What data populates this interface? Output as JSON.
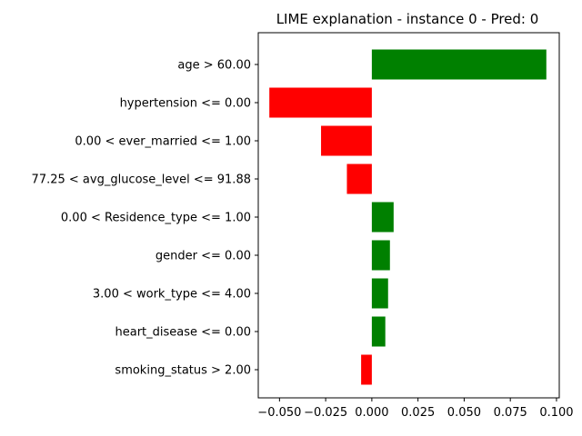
{
  "chart_data": {
    "type": "bar",
    "orientation": "horizontal",
    "title": "LIME explanation - instance 0 - Pred: 0",
    "xlabel": "",
    "ylabel": "",
    "categories": [
      "age > 60.00",
      "hypertension <= 0.00",
      "0.00 < ever_married <= 1.00",
      "77.25 < avg_glucose_level <= 91.88",
      "0.00 < Residence_type <= 1.00",
      "gender <= 0.00",
      "3.00 < work_type <= 4.00",
      "heart_disease <= 0.00",
      "smoking_status > 2.00"
    ],
    "values": [
      0.0945,
      -0.0555,
      -0.0275,
      -0.0135,
      0.0118,
      0.0098,
      0.0088,
      0.0073,
      -0.0058
    ],
    "xlim": [
      -0.0615,
      0.1015
    ],
    "xticks": [
      -0.05,
      -0.025,
      0.0,
      0.025,
      0.05,
      0.075,
      0.1
    ],
    "xtick_labels": [
      "−0.050",
      "−0.025",
      "0.000",
      "0.025",
      "0.050",
      "0.075",
      "0.100"
    ],
    "grid": false,
    "colors": {
      "positive": "#008000",
      "negative": "#ff0000",
      "axis": "#000000"
    }
  }
}
